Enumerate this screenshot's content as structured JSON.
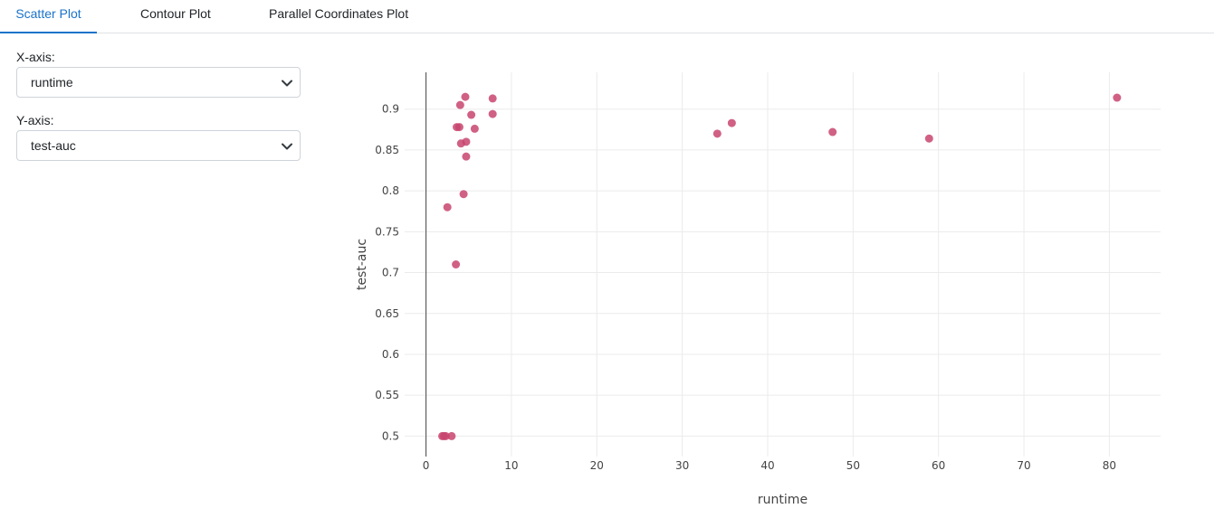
{
  "tabs": [
    {
      "label": "Scatter Plot",
      "active": true
    },
    {
      "label": "Contour Plot",
      "active": false
    },
    {
      "label": "Parallel Coordinates Plot",
      "active": false
    }
  ],
  "controls": {
    "x_axis": {
      "label": "X-axis:",
      "selected": "runtime"
    },
    "y_axis": {
      "label": "Y-axis:",
      "selected": "test-auc"
    }
  },
  "icons": {
    "dropdown": "chevron-down-icon"
  },
  "colors": {
    "accent": "#1a73c9",
    "marker": "#c8456f",
    "grid": "#ebebeb",
    "axis_line": "#444444"
  },
  "chart_data": {
    "type": "scatter",
    "title": "",
    "xlabel": "runtime",
    "ylabel": "test-auc",
    "xlim": [
      -2.5,
      86
    ],
    "ylim": [
      0.475,
      0.945
    ],
    "xticks": [
      0,
      10,
      20,
      30,
      40,
      50,
      60,
      70,
      80
    ],
    "yticks": [
      0.5,
      0.55,
      0.6,
      0.65,
      0.7,
      0.75,
      0.8,
      0.85,
      0.9
    ],
    "ytick_labels": [
      "0.5",
      "0.55",
      "0.6",
      "0.65",
      "0.7",
      "0.75",
      "0.8",
      "0.85",
      "0.9"
    ],
    "grid": true,
    "legend": false,
    "points": [
      {
        "x": 4.6,
        "y": 0.915
      },
      {
        "x": 7.8,
        "y": 0.913
      },
      {
        "x": 80.9,
        "y": 0.914
      },
      {
        "x": 4.0,
        "y": 0.905
      },
      {
        "x": 5.3,
        "y": 0.893
      },
      {
        "x": 7.8,
        "y": 0.894
      },
      {
        "x": 35.8,
        "y": 0.883
      },
      {
        "x": 3.6,
        "y": 0.878
      },
      {
        "x": 3.9,
        "y": 0.878
      },
      {
        "x": 5.7,
        "y": 0.876
      },
      {
        "x": 34.1,
        "y": 0.87
      },
      {
        "x": 47.6,
        "y": 0.872
      },
      {
        "x": 58.9,
        "y": 0.864
      },
      {
        "x": 4.7,
        "y": 0.86
      },
      {
        "x": 4.1,
        "y": 0.858
      },
      {
        "x": 4.7,
        "y": 0.842
      },
      {
        "x": 4.4,
        "y": 0.796
      },
      {
        "x": 2.5,
        "y": 0.78
      },
      {
        "x": 3.5,
        "y": 0.71
      },
      {
        "x": 1.9,
        "y": 0.5
      },
      {
        "x": 2.1,
        "y": 0.5
      },
      {
        "x": 2.3,
        "y": 0.5
      },
      {
        "x": 3.0,
        "y": 0.5
      }
    ]
  }
}
